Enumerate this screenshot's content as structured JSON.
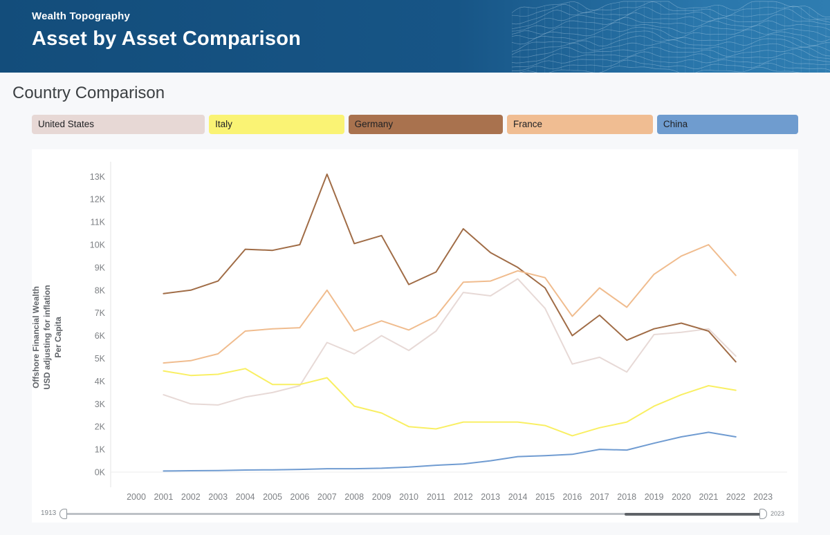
{
  "header": {
    "app_title": "Wealth Topography",
    "page_title": "Asset by Asset Comparison"
  },
  "section": {
    "title": "Country Comparison"
  },
  "legend": [
    {
      "label": "United States",
      "color": "#e7d8d5"
    },
    {
      "label": "Italy",
      "color": "#faf374"
    },
    {
      "label": "Germany",
      "color": "#a9724e"
    },
    {
      "label": "France",
      "color": "#f0bd92"
    },
    {
      "label": "China",
      "color": "#6f9ccf"
    }
  ],
  "chart_data": {
    "type": "line",
    "title": "Country Comparison",
    "ylabel_lines": [
      "Offshore Financial Wealth",
      "USD adjusting for inflation",
      "Per Capita"
    ],
    "values_unit": "thousands of USD per capita",
    "x": [
      2001,
      2002,
      2003,
      2004,
      2005,
      2006,
      2007,
      2008,
      2009,
      2010,
      2011,
      2012,
      2013,
      2014,
      2015,
      2016,
      2017,
      2018,
      2019,
      2020,
      2021,
      2022
    ],
    "x_axis_ticks": [
      2000,
      2001,
      2002,
      2003,
      2004,
      2005,
      2006,
      2007,
      2008,
      2009,
      2010,
      2011,
      2012,
      2013,
      2014,
      2015,
      2016,
      2017,
      2018,
      2019,
      2020,
      2021,
      2022,
      2023
    ],
    "y_ticks": [
      "0K",
      "1K",
      "2K",
      "3K",
      "4K",
      "5K",
      "6K",
      "7K",
      "8K",
      "9K",
      "10K",
      "11K",
      "12K",
      "13K"
    ],
    "ylim": [
      0,
      13.5
    ],
    "grid": "off",
    "legend_position": "top",
    "series": [
      {
        "name": "United States",
        "color": "#e7d9d6",
        "values": [
          3.4,
          3.0,
          2.95,
          3.3,
          3.5,
          3.8,
          5.7,
          5.2,
          6.0,
          5.35,
          6.2,
          7.9,
          7.75,
          8.5,
          7.2,
          4.75,
          5.05,
          4.4,
          6.05,
          6.15,
          6.3,
          5.1
        ]
      },
      {
        "name": "Italy",
        "color": "#f9ef63",
        "values": [
          4.45,
          4.25,
          4.3,
          4.55,
          3.85,
          3.85,
          4.15,
          2.9,
          2.6,
          2.0,
          1.9,
          2.2,
          2.2,
          2.2,
          2.05,
          1.6,
          1.95,
          2.2,
          2.9,
          3.4,
          3.8,
          3.6
        ]
      },
      {
        "name": "Germany",
        "color": "#a06c46",
        "values": [
          7.85,
          8.0,
          8.4,
          9.8,
          9.75,
          10.0,
          13.1,
          10.05,
          10.4,
          8.25,
          8.8,
          10.7,
          9.65,
          9.0,
          8.1,
          6.0,
          6.9,
          5.8,
          6.3,
          6.55,
          6.2,
          4.85
        ]
      },
      {
        "name": "France",
        "color": "#f0bc8e",
        "values": [
          4.8,
          4.9,
          5.2,
          6.2,
          6.3,
          6.35,
          8.0,
          6.2,
          6.65,
          6.25,
          6.85,
          8.35,
          8.4,
          8.85,
          8.55,
          6.85,
          8.1,
          7.25,
          8.7,
          9.5,
          10.0,
          8.65
        ]
      },
      {
        "name": "China",
        "color": "#6f9bd1",
        "values": [
          0.05,
          0.06,
          0.07,
          0.09,
          0.1,
          0.12,
          0.15,
          0.15,
          0.17,
          0.22,
          0.3,
          0.36,
          0.5,
          0.68,
          0.72,
          0.78,
          1.0,
          0.97,
          1.27,
          1.55,
          1.75,
          1.55
        ]
      }
    ]
  },
  "slider": {
    "min_label": "1913",
    "max_label": "2023"
  }
}
